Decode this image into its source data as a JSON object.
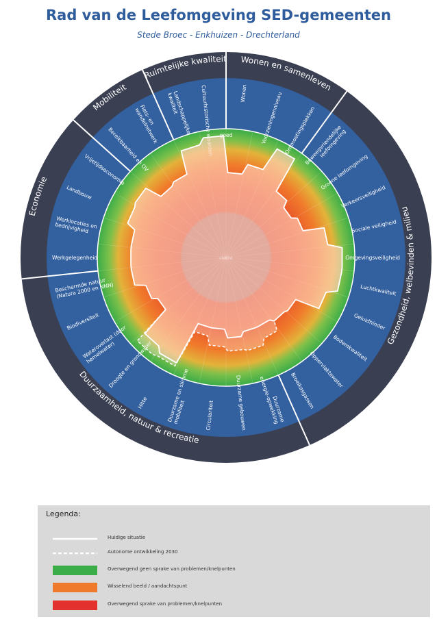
{
  "header": {
    "title": "Rad van de Leefomgeving SED-gemeenten",
    "subtitle": "Stede Broec - Enkhuizen - Drechterland"
  },
  "wheel": {
    "center_label": "slecht",
    "top_label": "goed",
    "sectors": [
      {
        "name": "Ruimtelijke kwaliteit",
        "start": 0,
        "end": 2
      },
      {
        "name": "Wonen en samenleven",
        "start": 2,
        "end": 5
      },
      {
        "name": "Gezondheid, welbevinden & milieu",
        "start": 5,
        "end": 15
      },
      {
        "name": "Duurzaamheid, natuur & recreatie",
        "start": 15,
        "end": 24
      },
      {
        "name": "Economie",
        "start": 24,
        "end": 28
      },
      {
        "name": "Mobiliteit",
        "start": 28,
        "end": 30
      }
    ],
    "indicators": [
      {
        "label": "Landschappelijke kwaliteit",
        "current": 0.85,
        "autonomous": 0.85
      },
      {
        "label": "Cultuurhistorische waarden",
        "current": 0.92,
        "autonomous": 0.92
      },
      {
        "label": "Wonen",
        "current": 0.5,
        "autonomous": 0.5
      },
      {
        "label": "Voorzieningenniveau",
        "current": 0.62,
        "autonomous": 0.62
      },
      {
        "label": "Ontmoetingsplekken",
        "current": 0.9,
        "autonomous": 0.9
      },
      {
        "label": "Beweegvriendelijke leefomgeving",
        "current": 0.48,
        "autonomous": 0.48
      },
      {
        "label": "Groene leefomgeving",
        "current": 0.4,
        "autonomous": 0.4
      },
      {
        "label": "Verkeersveiligheid",
        "current": 0.46,
        "autonomous": 0.46
      },
      {
        "label": "Sociale veiligheid",
        "current": 0.7,
        "autonomous": 0.7
      },
      {
        "label": "Omgevingsveiligheid",
        "current": 0.86,
        "autonomous": 0.86
      },
      {
        "label": "Luchtkwaliteit",
        "current": 0.86,
        "autonomous": 0.86
      },
      {
        "label": "Geluidhinder",
        "current": 0.74,
        "autonomous": 0.74
      },
      {
        "label": "Bodemkwaliteit",
        "current": 0.46,
        "autonomous": 0.46
      },
      {
        "label": "Oppervlaktewater",
        "current": 0.44,
        "autonomous": 0.44
      },
      {
        "label": "Broeikasgassen",
        "current": 0.4,
        "autonomous": 0.55
      },
      {
        "label": "Duurzame energie-opwekking",
        "current": 0.4,
        "autonomous": 0.62
      },
      {
        "label": "Duurzame gebouwen",
        "current": 0.45,
        "autonomous": 0.6
      },
      {
        "label": "Circulariteit",
        "current": 0.35,
        "autonomous": 0.55
      },
      {
        "label": "Duurzame en slimme mobiliteit",
        "current": 0.35,
        "autonomous": 0.45
      },
      {
        "label": "Hitte",
        "current": 0.86,
        "autonomous": 0.9
      },
      {
        "label": "Droogte en grondwater",
        "current": 0.8,
        "autonomous": 0.92
      },
      {
        "label": "Wateroverlast (door hemelwater)",
        "current": 0.44,
        "autonomous": 0.44
      },
      {
        "label": "Biodiversiteit",
        "current": 0.5,
        "autonomous": 0.5
      },
      {
        "label": "Beschermde natuur (Natura 2000 en NNN)",
        "current": 0.62,
        "autonomous": 0.62
      },
      {
        "label": "Werkgelegenheid",
        "current": 0.62,
        "autonomous": 0.62
      },
      {
        "label": "Werklocaties en bedrijvigheid",
        "current": 0.62,
        "autonomous": 0.62
      },
      {
        "label": "Landbouw",
        "current": 0.72,
        "autonomous": 0.72
      },
      {
        "label": "Vrijetijdseconomie",
        "current": 0.74,
        "autonomous": 0.74
      },
      {
        "label": "Bereikbaarheid en OV",
        "current": 0.55,
        "autonomous": 0.55
      },
      {
        "label": "Fiets- en wandelnetwerk",
        "current": 0.58,
        "autonomous": 0.58
      }
    ],
    "colors": {
      "ring_dark": "#3a3f52",
      "indicator_band": "#33609f",
      "good": "#3aac48",
      "mixed": "#f07a2b",
      "bad": "#e3322d",
      "center": "#b2696b"
    }
  },
  "legend": {
    "title": "Legenda:",
    "items": [
      {
        "kind": "solid-line",
        "color": "#ffffff",
        "label": "Huidige situatie"
      },
      {
        "kind": "dashed-line",
        "color": "#ffffff",
        "label": "Autonome ontwikkeling 2030"
      },
      {
        "kind": "fill",
        "color": "#3aac48",
        "label": "Overwegend geen sprake van problemen/knelpunten"
      },
      {
        "kind": "fill",
        "color": "#f07a2b",
        "label": "Wisselend beeld / aandachtspunt"
      },
      {
        "kind": "fill",
        "color": "#e3322d",
        "label": "Overwegend sprake van problemen/knelpunten"
      }
    ]
  }
}
